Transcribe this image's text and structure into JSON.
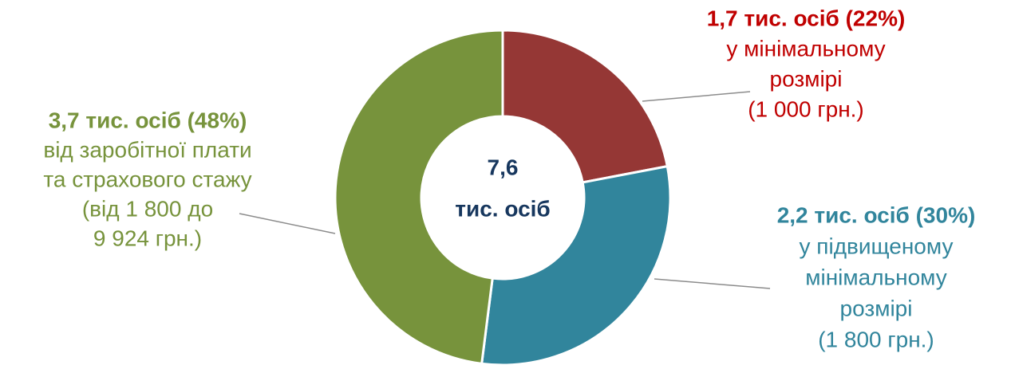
{
  "chart_data": {
    "type": "donut",
    "values": [
      22,
      30,
      48
    ],
    "value_labels": [
      "1,7 тис. осіб (22%)",
      "2,2 тис. осіб (30%)",
      "3,7 тис. осіб (48%)"
    ],
    "categories": [
      [
        "у мінімальному",
        "розмірі",
        "(1 000 грн.)"
      ],
      [
        "у підвищеному",
        "мінімальному",
        "розмірі",
        "(1 800 грн.)"
      ],
      [
        "від заробітної плати",
        "та страхового стажу",
        "(від 1 800 до",
        "9 924 грн.)"
      ]
    ],
    "colors": [
      "#953735",
      "#31859c",
      "#77933c"
    ],
    "label_colors": [
      "#c00000",
      "#31859c",
      "#77933c"
    ],
    "total": "7,6",
    "total_unit": "тис. осіб"
  }
}
